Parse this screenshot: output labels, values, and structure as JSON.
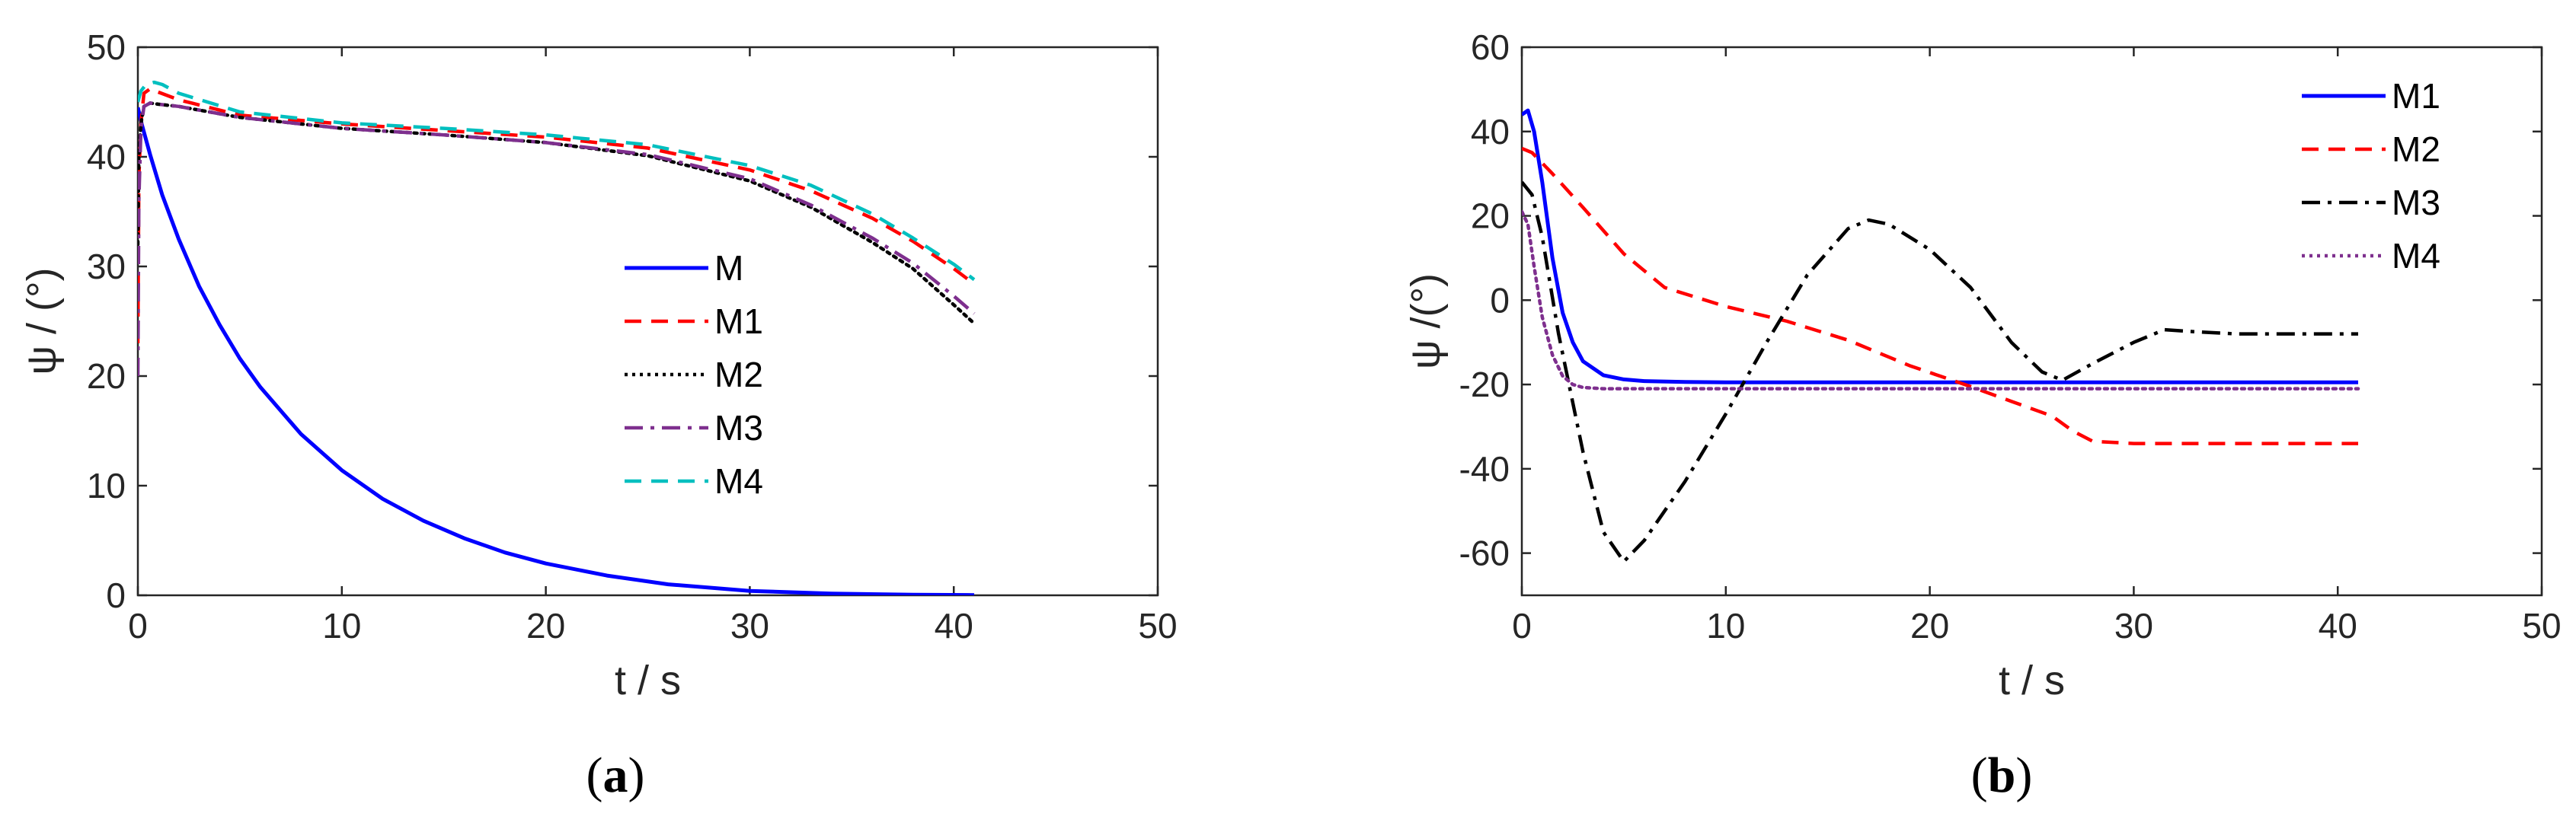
{
  "chart_data": [
    {
      "type": "line",
      "caption": {
        "open": "(",
        "letter": "a",
        "close": ")"
      },
      "xlabel": "t / s",
      "ylabel": "ψ / (°)",
      "xlim": [
        0,
        50
      ],
      "ylim": [
        0,
        50
      ],
      "xticks": [
        "0",
        "10",
        "20",
        "30",
        "40",
        "50"
      ],
      "yticks": [
        "0",
        "10",
        "20",
        "30",
        "40",
        "50"
      ],
      "legend_position": "center-right",
      "series": [
        {
          "name": "M",
          "color": "#0000ff",
          "style": "solid",
          "x": [
            0,
            0.2,
            0.6,
            1.2,
            2,
            3,
            4,
            5,
            6,
            8,
            10,
            12,
            14,
            16,
            18,
            20,
            23,
            26,
            30,
            34,
            38,
            41
          ],
          "y": [
            44.5,
            42.9,
            40.2,
            36.5,
            32.5,
            28.2,
            24.7,
            21.6,
            19.0,
            14.7,
            11.4,
            8.8,
            6.8,
            5.2,
            3.9,
            2.9,
            1.8,
            1.0,
            0.4,
            0.15,
            0.05,
            0.02
          ]
        },
        {
          "name": "M1",
          "color": "#ff0000",
          "style": "dashed",
          "x": [
            0,
            0.05,
            0.15,
            0.3,
            0.6,
            1.0,
            2,
            5,
            10,
            15,
            20,
            25,
            30,
            33,
            36,
            38,
            40,
            41
          ],
          "y": [
            23,
            38,
            43,
            45.8,
            46.2,
            45.9,
            45.2,
            43.8,
            43.0,
            42.4,
            41.8,
            40.8,
            38.8,
            36.9,
            34.4,
            32.3,
            29.8,
            28.4
          ]
        },
        {
          "name": "M2",
          "color": "#000000",
          "style": "dotted",
          "x": [
            0,
            0.05,
            0.15,
            0.3,
            0.6,
            1.0,
            2,
            5,
            10,
            15,
            20,
            25,
            30,
            33,
            36,
            38,
            40,
            41
          ],
          "y": [
            32,
            40,
            43,
            44.6,
            44.9,
            44.8,
            44.6,
            43.6,
            42.6,
            42.0,
            41.3,
            40.1,
            37.8,
            35.4,
            32.2,
            29.8,
            26.5,
            24.8
          ]
        },
        {
          "name": "M3",
          "color": "#7e2f8e",
          "style": "dashdot",
          "x": [
            0,
            0.05,
            0.15,
            0.3,
            0.6,
            1.0,
            2,
            5,
            10,
            15,
            20,
            25,
            30,
            33,
            36,
            38,
            40,
            41
          ],
          "y": [
            20,
            36,
            42.5,
            44.6,
            44.9,
            44.8,
            44.6,
            43.6,
            42.6,
            42.0,
            41.3,
            40.2,
            38.0,
            35.6,
            32.6,
            30.3,
            27.3,
            25.7
          ]
        },
        {
          "name": "M4",
          "color": "#00bfbf",
          "style": "dashed",
          "x": [
            0,
            0.15,
            0.4,
            0.8,
            1.2,
            2,
            5,
            10,
            15,
            20,
            25,
            30,
            33,
            36,
            38,
            40,
            41
          ],
          "y": [
            45,
            46.0,
            46.6,
            46.8,
            46.6,
            45.8,
            44.1,
            43.1,
            42.6,
            42.0,
            41.1,
            39.2,
            37.4,
            34.8,
            32.6,
            30.2,
            28.8
          ]
        }
      ]
    },
    {
      "type": "line",
      "caption": {
        "open": "(",
        "letter": "b",
        "close": ")"
      },
      "xlabel": "t / s",
      "ylabel": "ψ /(°)",
      "xlim": [
        0,
        50
      ],
      "ylim": [
        -70,
        60
      ],
      "xticks": [
        "0",
        "10",
        "20",
        "30",
        "40",
        "50"
      ],
      "yticks": [
        "-60",
        "-40",
        "-20",
        "0",
        "20",
        "40",
        "60"
      ],
      "legend_position": "top-right",
      "series": [
        {
          "name": "M1",
          "color": "#0000ff",
          "style": "solid",
          "x": [
            0,
            0.3,
            0.6,
            1.0,
            1.5,
            2.0,
            2.5,
            3.0,
            4,
            5,
            6,
            8,
            10,
            20,
            30,
            41
          ],
          "y": [
            44,
            45,
            40,
            28,
            10,
            -3,
            -10,
            -14.5,
            -17.8,
            -18.8,
            -19.2,
            -19.4,
            -19.5,
            -19.5,
            -19.5,
            -19.5
          ]
        },
        {
          "name": "M2",
          "color": "#ff0000",
          "style": "dashed",
          "x": [
            0,
            0.5,
            1.5,
            3,
            5,
            7,
            10,
            13,
            16,
            19,
            22,
            24,
            26,
            27,
            28,
            30,
            35,
            41
          ],
          "y": [
            36,
            35,
            30,
            22,
            11,
            3,
            -1.5,
            -5,
            -9.5,
            -15.5,
            -20.5,
            -24,
            -27.5,
            -31,
            -33.5,
            -34,
            -34,
            -34
          ]
        },
        {
          "name": "M3",
          "color": "#000000",
          "style": "dashdot",
          "x": [
            0,
            0.5,
            1.0,
            1.8,
            3,
            4,
            5,
            6,
            8,
            10,
            12,
            14,
            16,
            17,
            18,
            20,
            22,
            24,
            25.5,
            26.5,
            28,
            30,
            31.5,
            33,
            35,
            41
          ],
          "y": [
            28,
            25,
            15,
            -8,
            -36,
            -55,
            -62,
            -57,
            -43,
            -27,
            -10,
            6,
            17,
            19,
            18,
            12,
            3,
            -10,
            -17,
            -19,
            -15,
            -10,
            -7,
            -7.5,
            -8,
            -8
          ]
        },
        {
          "name": "M4",
          "color": "#7e2f8e",
          "style": "dotted",
          "x": [
            0,
            0.3,
            0.6,
            1.0,
            1.5,
            2.0,
            2.5,
            3.0,
            4,
            5,
            8,
            20,
            41
          ],
          "y": [
            21,
            18,
            8,
            -4,
            -13,
            -18,
            -20,
            -20.7,
            -21,
            -21,
            -21,
            -21,
            -21
          ]
        }
      ]
    }
  ]
}
